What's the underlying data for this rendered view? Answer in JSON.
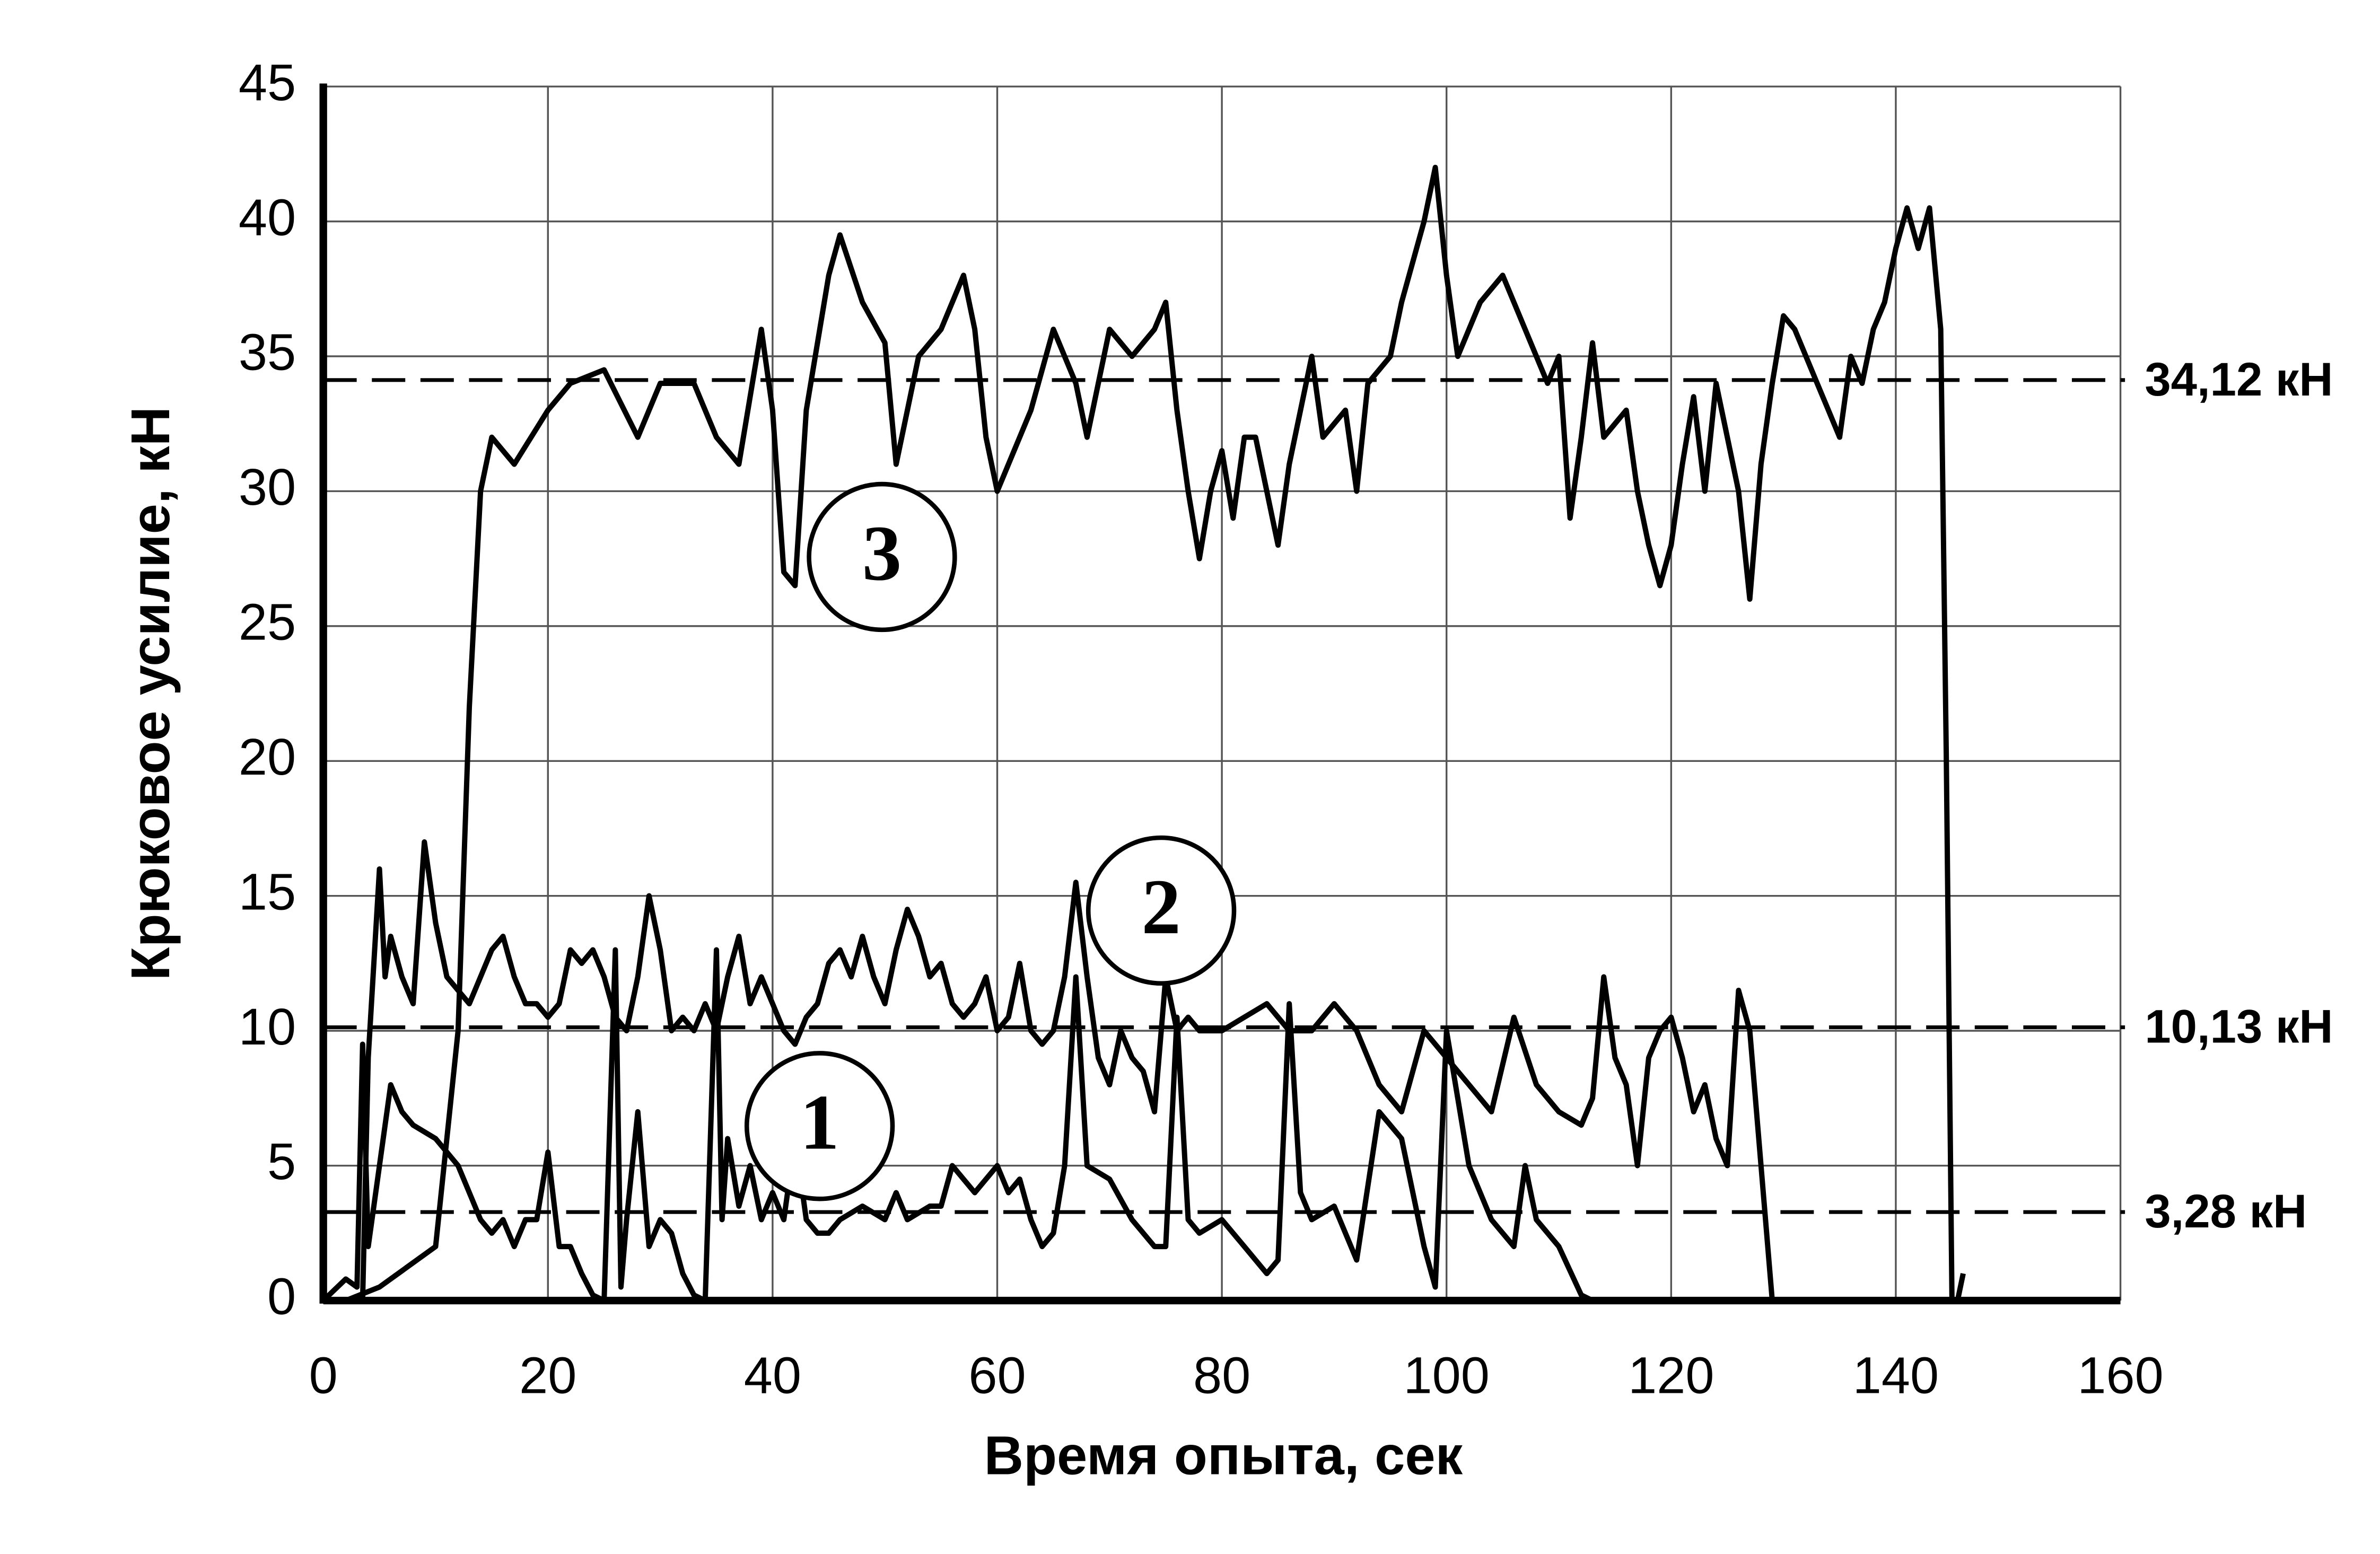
{
  "chart_data": {
    "type": "line",
    "x_label": "Время опыта, сек",
    "y_label": "Крюковое усилие, кН",
    "xlim": [
      0,
      160
    ],
    "xticks": [
      0,
      20,
      40,
      60,
      80,
      100,
      120,
      140,
      160
    ],
    "ylim": [
      0,
      45
    ],
    "yticks": [
      0,
      5,
      10,
      15,
      20,
      25,
      30,
      35,
      40,
      45
    ],
    "grid": true,
    "series": [
      {
        "name": "1",
        "color": "#000000",
        "x": [
          0,
          2,
          3,
          3.5,
          4,
          5,
          6,
          7,
          8,
          10,
          12,
          13,
          14,
          15,
          16,
          17,
          18,
          19,
          20,
          21,
          22,
          23,
          24,
          25,
          26,
          26.5,
          27,
          28,
          29,
          30,
          31,
          32,
          33,
          34,
          35,
          35.5,
          36,
          37,
          38,
          39,
          40,
          41,
          42,
          43,
          44,
          45,
          46,
          48,
          50,
          51,
          52,
          54,
          55,
          56,
          58,
          60,
          61,
          62,
          63,
          64,
          65,
          66,
          67,
          68,
          70,
          72,
          74,
          75,
          76,
          77,
          78,
          80,
          82,
          84,
          85,
          86,
          87,
          88,
          90,
          92,
          94,
          96,
          98,
          99,
          100,
          102,
          104,
          106,
          107,
          108,
          110,
          112,
          113
        ],
        "values": [
          0,
          0.8,
          0.5,
          9.5,
          2,
          5,
          8,
          7,
          6.5,
          6,
          5,
          4,
          3,
          2.5,
          3,
          2,
          3,
          3,
          5.5,
          2,
          2,
          1,
          0.2,
          0,
          13,
          0.5,
          3,
          7,
          2,
          3,
          2.5,
          1,
          0.2,
          0,
          13,
          3,
          6,
          3.5,
          5,
          3,
          4,
          3,
          6,
          3,
          2.5,
          2.5,
          3,
          3.5,
          3,
          4,
          3,
          3.5,
          3.5,
          5,
          4,
          5,
          4,
          4.5,
          3,
          2,
          2.5,
          5,
          12,
          5,
          4.5,
          3,
          2,
          2,
          10.5,
          3,
          2.5,
          3,
          2,
          1,
          1.5,
          11,
          4,
          3,
          3.5,
          1.5,
          7,
          6,
          2,
          0.5,
          10,
          5,
          3,
          2,
          5,
          3,
          2,
          0.2,
          0
        ]
      },
      {
        "name": "2",
        "color": "#000000",
        "x": [
          3.5,
          4,
          5,
          5.5,
          6,
          7,
          8,
          9,
          10,
          11,
          12,
          13,
          14,
          15,
          16,
          17,
          18,
          19,
          20,
          21,
          22,
          23,
          24,
          25,
          26,
          27,
          28,
          29,
          30,
          31,
          32,
          33,
          34,
          35,
          36,
          37,
          38,
          39,
          40,
          41,
          42,
          43,
          44,
          45,
          46,
          47,
          48,
          49,
          50,
          51,
          52,
          53,
          54,
          55,
          56,
          57,
          58,
          59,
          60,
          61,
          62,
          63,
          64,
          65,
          66,
          67,
          68,
          69,
          70,
          71,
          72,
          73,
          74,
          75,
          76,
          77,
          78,
          80,
          82,
          84,
          86,
          88,
          90,
          92,
          94,
          96,
          98,
          100,
          102,
          104,
          106,
          108,
          110,
          112,
          113,
          114,
          115,
          116,
          117,
          118,
          119,
          120,
          121,
          122,
          123,
          124,
          125,
          126,
          127,
          128,
          129
        ],
        "values": [
          0,
          9,
          16,
          12,
          13.5,
          12,
          11,
          17,
          14,
          12,
          11.5,
          11,
          12,
          13,
          13.5,
          12,
          11,
          11,
          10.5,
          11,
          13,
          12.5,
          13,
          12,
          10.5,
          10,
          12,
          15,
          13,
          10,
          10.5,
          10,
          11,
          10,
          12,
          13.5,
          11,
          12,
          11,
          10,
          9.5,
          10.5,
          11,
          12.5,
          13,
          12,
          13.5,
          12,
          11,
          13,
          14.5,
          13.5,
          12,
          12.5,
          11,
          10.5,
          11,
          12,
          10,
          10.5,
          12.5,
          10,
          9.5,
          10,
          12,
          15.5,
          12,
          9,
          8,
          10,
          9,
          8.5,
          7,
          12,
          10,
          10.5,
          10,
          10,
          10.5,
          11,
          10,
          10,
          11,
          10,
          8,
          7,
          10,
          9,
          8,
          7,
          10.5,
          8,
          7,
          6.5,
          7.5,
          12,
          9,
          8,
          5,
          9,
          10,
          10.5,
          9,
          7,
          8,
          6,
          5,
          11.5,
          10,
          5,
          0
        ]
      },
      {
        "name": "3",
        "color": "#000000",
        "x": [
          0,
          2,
          5,
          10,
          12,
          13,
          14,
          15,
          17,
          20,
          22,
          25,
          28,
          30,
          33,
          35,
          37,
          39,
          40,
          41,
          42,
          43,
          45,
          46,
          48,
          50,
          51,
          53,
          55,
          57,
          58,
          59,
          60,
          62,
          63,
          65,
          67,
          68,
          70,
          72,
          74,
          75,
          76,
          77,
          78,
          79,
          80,
          81,
          82,
          83,
          84,
          85,
          86,
          88,
          89,
          91,
          92,
          93,
          95,
          96,
          98,
          99,
          100,
          101,
          103,
          105,
          107,
          109,
          110,
          111,
          112,
          113,
          114,
          116,
          117,
          118,
          119,
          120,
          121,
          122,
          123,
          124,
          125,
          126,
          127,
          128,
          129,
          130,
          131,
          133,
          134,
          135,
          136,
          137,
          138,
          139,
          140,
          141,
          142,
          143,
          144,
          144.5,
          145,
          145.5,
          146
        ],
        "values": [
          0,
          0,
          0.5,
          2,
          10,
          22,
          30,
          32,
          31,
          33,
          34,
          34.5,
          32,
          34,
          34,
          32,
          31,
          36,
          33,
          27,
          26.5,
          33,
          38,
          39.5,
          37,
          35.5,
          31,
          35,
          36,
          38,
          36,
          32,
          30,
          32,
          33,
          36,
          34,
          32,
          36,
          35,
          36,
          37,
          33,
          30,
          27.5,
          30,
          31.5,
          29,
          32,
          32,
          30,
          28,
          31,
          35,
          32,
          33,
          30,
          34,
          35,
          37,
          40,
          42,
          38,
          35,
          37,
          38,
          36,
          34,
          35,
          29,
          32,
          35.5,
          32,
          33,
          30,
          28,
          26.5,
          28,
          31,
          33.5,
          30,
          34,
          32,
          30,
          26,
          31,
          34,
          36.5,
          36,
          34,
          33,
          32,
          35,
          34,
          36,
          37,
          39,
          40.5,
          39,
          40.5,
          36,
          20,
          0,
          0,
          1
        ]
      }
    ],
    "reference_lines": [
      {
        "value": 34.12,
        "label": "34,12 кН"
      },
      {
        "value": 10.13,
        "label": "10,13 кН"
      },
      {
        "value": 3.28,
        "label": "3,28 кН"
      }
    ]
  }
}
